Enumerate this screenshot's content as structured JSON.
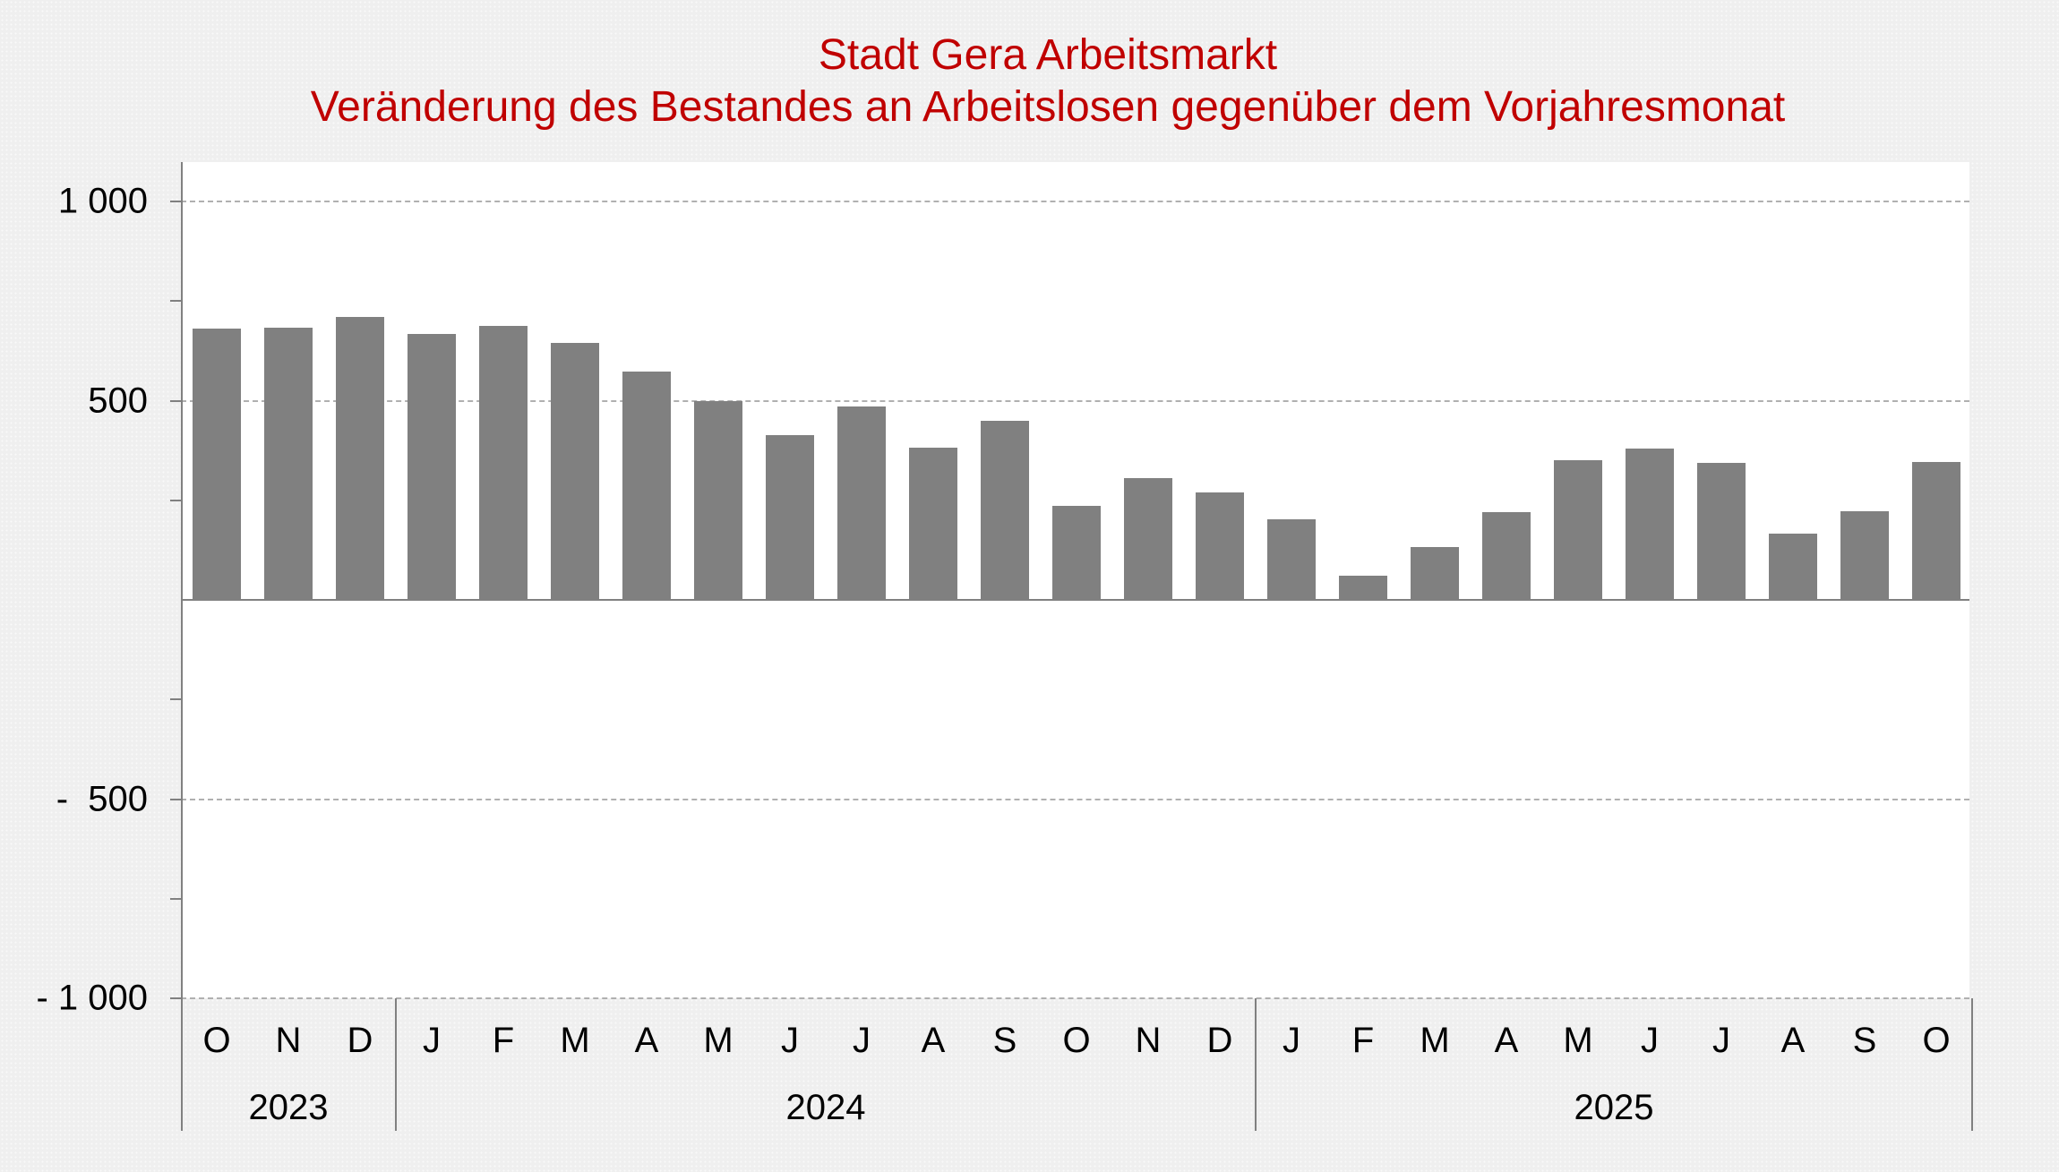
{
  "title": {
    "line1": "Stadt Gera Arbeitsmarkt",
    "line2": "Veränderung des Bestandes an Arbeitslosen gegenüber dem Vorjahresmonat"
  },
  "colors": {
    "title": "#C00000",
    "bar": "#808080",
    "plot_background": "#FFFFFF",
    "page_background": "#EFEFEF"
  },
  "y_axis": {
    "ticks": [
      {
        "value": 1000,
        "label": "1 000"
      },
      {
        "value": 500,
        "label": "500"
      },
      {
        "value": -500,
        "label": "-  500"
      },
      {
        "value": -1000,
        "label": "- 1 000"
      }
    ]
  },
  "x_axis": {
    "months": [
      "O",
      "N",
      "D",
      "J",
      "F",
      "M",
      "A",
      "M",
      "J",
      "J",
      "A",
      "S",
      "O",
      "N",
      "D",
      "J",
      "F",
      "M",
      "A",
      "M",
      "J",
      "J",
      "A",
      "S",
      "O"
    ],
    "years": [
      {
        "label": "2023",
        "start": 0,
        "count": 3
      },
      {
        "label": "2024",
        "start": 3,
        "count": 12
      },
      {
        "label": "2025",
        "start": 15,
        "count": 10
      }
    ]
  },
  "chart_data": {
    "type": "bar",
    "title": "Stadt Gera Arbeitsmarkt — Veränderung des Bestandes an Arbeitslosen gegenüber dem Vorjahresmonat",
    "xlabel": "",
    "ylabel": "",
    "ylim": [
      -1000,
      1000
    ],
    "yticks": [
      -1000,
      -500,
      0,
      500,
      1000
    ],
    "grid": true,
    "legend": null,
    "categories": [
      "Okt 2023",
      "Nov 2023",
      "Dez 2023",
      "Jan 2024",
      "Feb 2024",
      "Mär 2024",
      "Apr 2024",
      "Mai 2024",
      "Jun 2024",
      "Jul 2024",
      "Aug 2024",
      "Sep 2024",
      "Okt 2024",
      "Nov 2024",
      "Dez 2024",
      "Jan 2025",
      "Feb 2025",
      "Mär 2025",
      "Apr 2025",
      "Mai 2025",
      "Jun 2025",
      "Jul 2025",
      "Aug 2025",
      "Sep 2025",
      "Okt 2025"
    ],
    "values": [
      680,
      683,
      710,
      667,
      687,
      644,
      573,
      500,
      413,
      485,
      382,
      449,
      235,
      305,
      269,
      202,
      60,
      132,
      220,
      350,
      380,
      343,
      166,
      222,
      346
    ]
  }
}
